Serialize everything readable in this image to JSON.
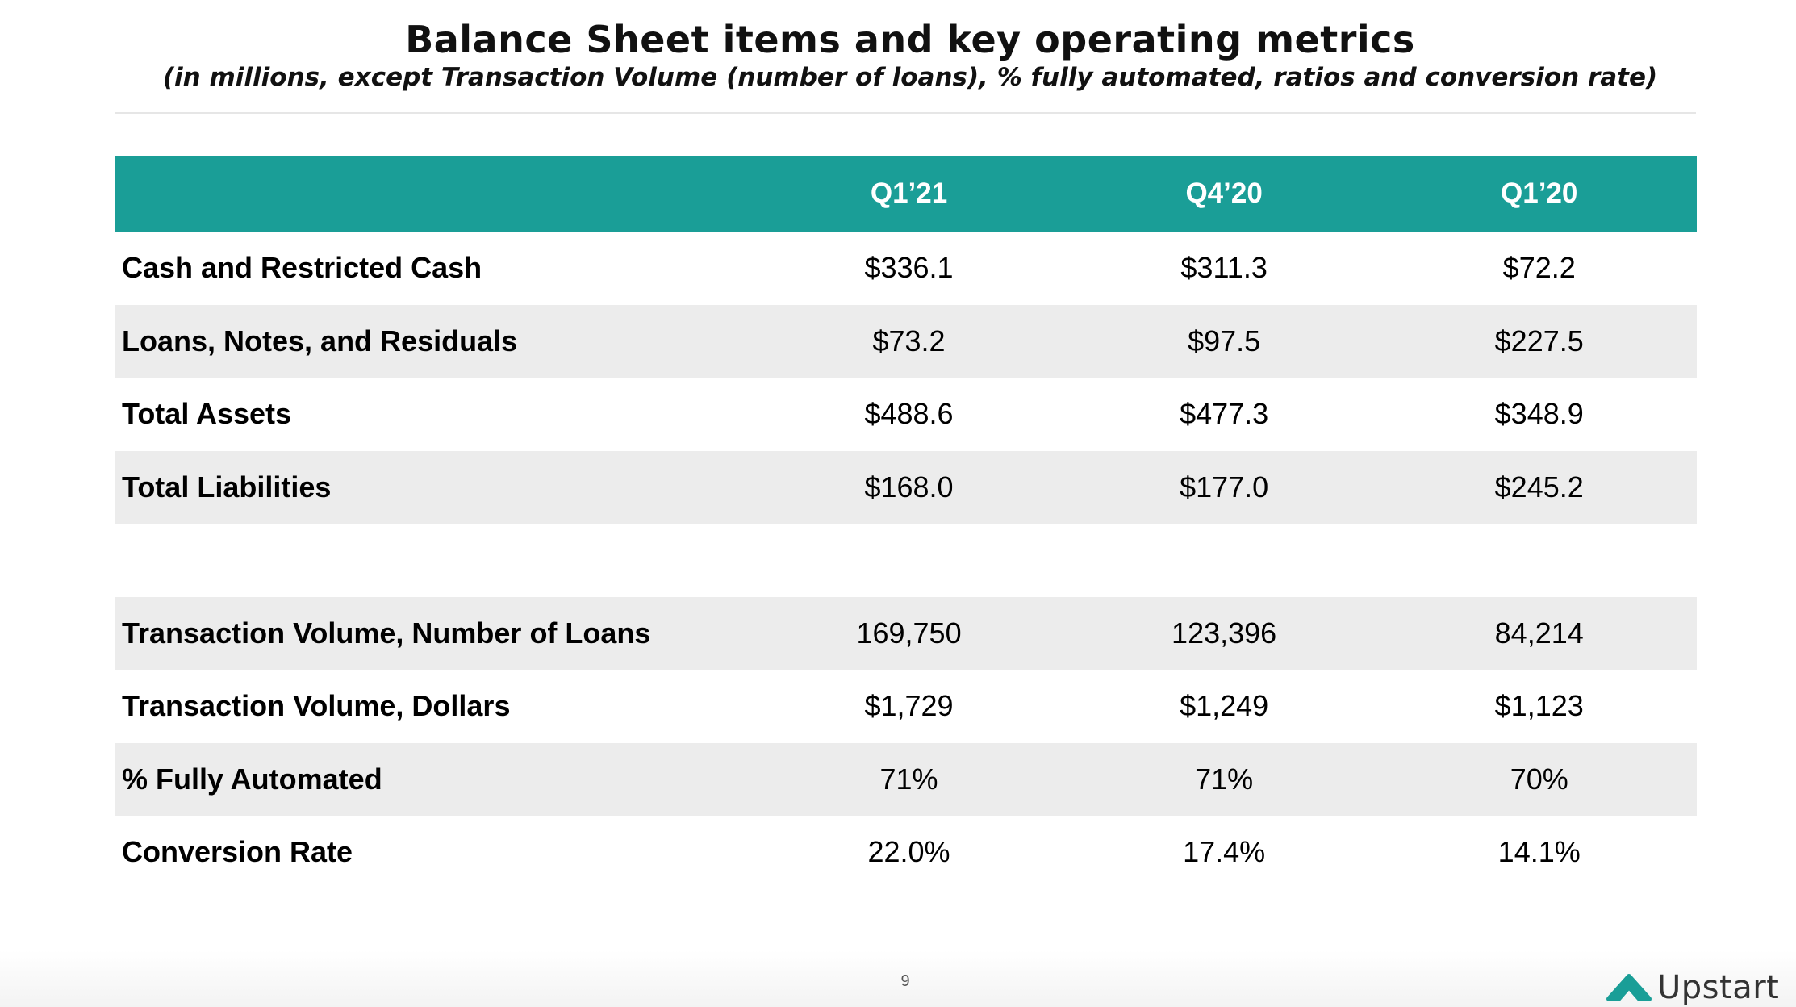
{
  "slide": {
    "title": "Balance Sheet items and key operating metrics",
    "subtitle": "(in millions, except Transaction Volume (number of loans), % fully automated, ratios and conversion rate)",
    "page_number": "9",
    "logo_text": "Upstart",
    "accent_color": "#1a9e97"
  },
  "table": {
    "headers": [
      "",
      "Q1’21",
      "Q4’20",
      "Q1’20"
    ],
    "balance_rows": [
      {
        "label": "Cash and Restricted Cash",
        "values": [
          "$336.1",
          "$311.3",
          "$72.2"
        ]
      },
      {
        "label": "Loans, Notes, and Residuals",
        "values": [
          "$73.2",
          "$97.5",
          "$227.5"
        ]
      },
      {
        "label": "Total Assets",
        "values": [
          "$488.6",
          "$477.3",
          "$348.9"
        ]
      },
      {
        "label": "Total Liabilities",
        "values": [
          "$168.0",
          "$177.0",
          "$245.2"
        ]
      }
    ],
    "metric_rows": [
      {
        "label": "Transaction Volume, Number of Loans",
        "values": [
          "169,750",
          "123,396",
          "84,214"
        ]
      },
      {
        "label": "Transaction Volume, Dollars",
        "values": [
          "$1,729",
          "$1,249",
          "$1,123"
        ]
      },
      {
        "label": "% Fully Automated",
        "values": [
          "71%",
          "71%",
          "70%"
        ]
      },
      {
        "label": "Conversion Rate",
        "values": [
          "22.0%",
          "17.4%",
          "14.1%"
        ]
      }
    ]
  }
}
